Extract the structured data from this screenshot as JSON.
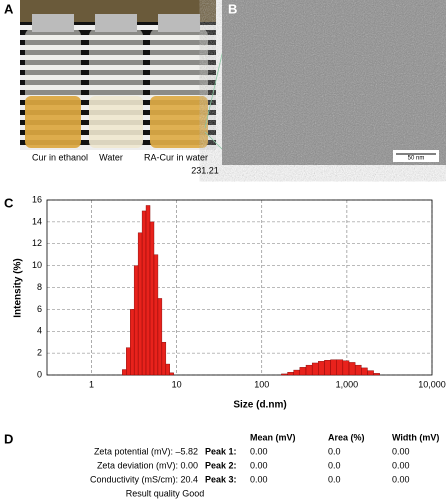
{
  "panels": {
    "a": {
      "label": "A",
      "vial_labels": [
        "Cur in ethanol",
        "Water",
        "RA-Cur in water"
      ],
      "note": "231.21"
    },
    "b": {
      "label": "B",
      "scale_bar": "50 nm"
    },
    "c": {
      "label": "C"
    },
    "d": {
      "label": "D",
      "summary": [
        "Zeta potential (mV): –5.82",
        "Zeta deviation (mV): 0.00",
        "Conductivity (mS/cm): 20.4",
        "Result quality Good"
      ],
      "header": [
        "Mean (mV)",
        "Area (%)",
        "Width (mV)"
      ],
      "rows": [
        {
          "peak": "Peak 1:",
          "values": [
            "0.00",
            "0.0",
            "0.00"
          ]
        },
        {
          "peak": "Peak 2:",
          "values": [
            "0.00",
            "0.0",
            "0.00"
          ]
        },
        {
          "peak": "Peak 3:",
          "values": [
            "0.00",
            "0.0",
            "0.00"
          ]
        }
      ]
    }
  },
  "chart_data": {
    "type": "histogram",
    "xlabel": "Size (d.nm)",
    "ylabel": "Intensity (%)",
    "xscale": "log",
    "grid": true,
    "color": "#e8221c",
    "xlim": [
      0.3,
      10000
    ],
    "ylim": [
      0,
      16
    ],
    "xticks": [
      1,
      10,
      100,
      {
        "value": 1000,
        "label": "1,000"
      },
      {
        "value": 10000,
        "label": "10,000"
      }
    ],
    "yticks": [
      0,
      2,
      4,
      6,
      8,
      10,
      12,
      14,
      16
    ],
    "groups": [
      {
        "bins": [
          2.3,
          2.56,
          2.85,
          3.17,
          3.53,
          3.93,
          4.37,
          4.87,
          5.42,
          6.03,
          6.71,
          7.47,
          8.31,
          9.25
        ],
        "values": [
          0.5,
          2.5,
          6,
          10,
          13,
          15,
          15.5,
          14,
          11,
          7,
          3,
          1,
          0.2
        ]
      },
      {
        "bins": [
          170,
          201,
          237,
          280,
          331,
          391,
          461,
          545,
          643,
          760,
          897,
          1060,
          1251,
          1478,
          1745,
          2061,
          2434
        ],
        "values": [
          0.1,
          0.25,
          0.45,
          0.7,
          0.9,
          1.1,
          1.25,
          1.35,
          1.4,
          1.4,
          1.3,
          1.15,
          0.9,
          0.65,
          0.4,
          0.15
        ]
      }
    ]
  }
}
